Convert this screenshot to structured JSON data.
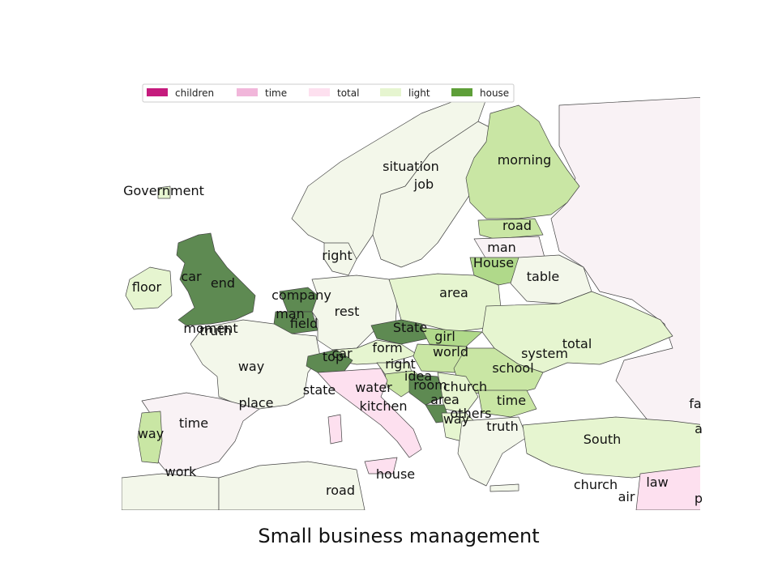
{
  "title": "Small business management",
  "legend": [
    {
      "label": "children",
      "color": "#c51b7d"
    },
    {
      "label": "time",
      "color": "#f1b6da"
    },
    {
      "label": "total",
      "color": "#fde0ef"
    },
    {
      "label": "light",
      "color": "#e6f5d0"
    },
    {
      "label": "house",
      "color": "#5e9f39"
    }
  ],
  "regions": [
    {
      "label": "Government",
      "color": "#e6f5d0"
    },
    {
      "label": "situation",
      "color": "#f3f7ea"
    },
    {
      "label": "job",
      "color": "#f3f7ea"
    },
    {
      "label": "morning",
      "color": "#c9e6a4"
    },
    {
      "label": "road",
      "color": "#c9e6a4"
    },
    {
      "label": "man",
      "color": "#f9f2f5"
    },
    {
      "label": "House",
      "color": "#b0d98a"
    },
    {
      "label": "table",
      "color": "#f3f7ea"
    },
    {
      "label": "right",
      "color": "#f3f7ea"
    },
    {
      "label": "floor",
      "color": "#e6f5d0"
    },
    {
      "label": "car",
      "color": "#5e8a52"
    },
    {
      "label": "end",
      "color": "#5e8a52"
    },
    {
      "label": "company",
      "color": "#5e8a52"
    },
    {
      "label": "man",
      "color": "#5e8a52"
    },
    {
      "label": "rest",
      "color": "#f3f7ea"
    },
    {
      "label": "area",
      "color": "#e6f5d0"
    },
    {
      "label": "field",
      "color": "#5e8a52"
    },
    {
      "label": "moment",
      "color": "#f3f7ea"
    },
    {
      "label": "truth",
      "color": "#f3f7ea"
    },
    {
      "label": "State",
      "color": "#5e8a52"
    },
    {
      "label": "girl",
      "color": "#b0d98a"
    },
    {
      "label": "world",
      "color": "#c9e6a4"
    },
    {
      "label": "total",
      "color": "#e6f5d0"
    },
    {
      "label": "system",
      "color": "#e6f5d0"
    },
    {
      "label": "form",
      "color": "#e6f5d0"
    },
    {
      "label": "car",
      "color": "#e6f5d0"
    },
    {
      "label": "top",
      "color": "#5e8a52"
    },
    {
      "label": "way",
      "color": "#f3f7ea"
    },
    {
      "label": "right",
      "color": "#c9e6a4"
    },
    {
      "label": "school",
      "color": "#f3f7ea"
    },
    {
      "label": "idea",
      "color": "#e6f5d0"
    },
    {
      "label": "room",
      "color": "#5e8a52"
    },
    {
      "label": "church",
      "color": "#e6f5d0"
    },
    {
      "label": "state",
      "color": "#fde0ef"
    },
    {
      "label": "water",
      "color": "#fde0ef"
    },
    {
      "label": "area",
      "color": "#e6f5d0"
    },
    {
      "label": "time",
      "color": "#c9e6a4"
    },
    {
      "label": "place",
      "color": "#f3f7ea"
    },
    {
      "label": "kitchen",
      "color": "#fde0ef"
    },
    {
      "label": "others",
      "color": "#e6f5d0"
    },
    {
      "label": "way",
      "color": "#e6f5d0"
    },
    {
      "label": "truth",
      "color": "#f3f7ea"
    },
    {
      "label": "time",
      "color": "#f9f2f5"
    },
    {
      "label": "way",
      "color": "#c9e6a4"
    },
    {
      "label": "South",
      "color": "#e6f5d0"
    },
    {
      "label": "work",
      "color": "#f3f7ea"
    },
    {
      "label": "house",
      "color": "#fde0ef"
    },
    {
      "label": "road",
      "color": "#f3f7ea"
    },
    {
      "label": "church",
      "color": "#f3f7ea"
    },
    {
      "label": "air",
      "color": "#f3f7ea"
    },
    {
      "label": "law",
      "color": "#fde0ef"
    },
    {
      "label": "fa",
      "color": "#f9f2f5"
    },
    {
      "label": "a",
      "color": "#e6f5d0"
    },
    {
      "label": "p",
      "color": "#fde0ef"
    }
  ]
}
